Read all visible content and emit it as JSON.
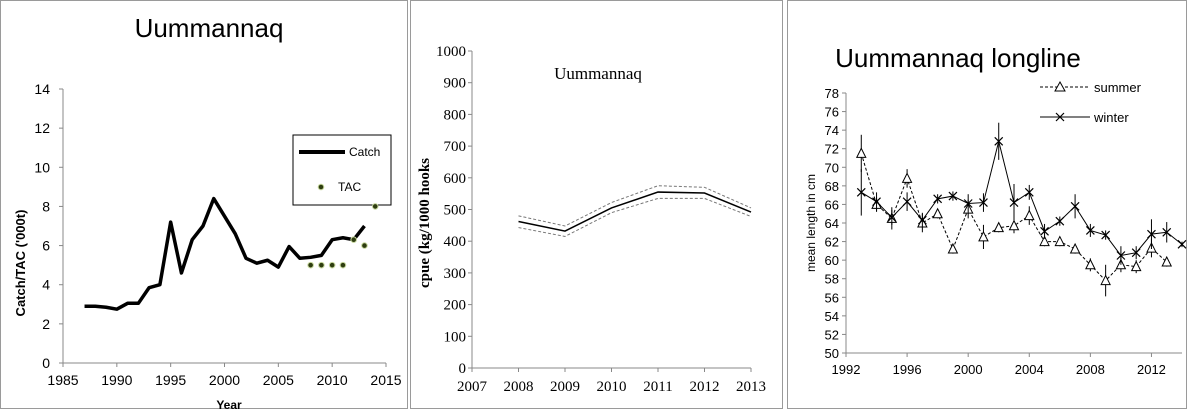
{
  "chart_data": [
    {
      "type": "line",
      "title": "Uummannaq",
      "xlabel": "Year",
      "ylabel": "Catch/TAC ('000t)",
      "xlim": [
        1985,
        2015
      ],
      "ylim": [
        0,
        14
      ],
      "xticks": [
        1985,
        1990,
        1995,
        2000,
        2005,
        2010,
        2015
      ],
      "yticks": [
        0,
        2,
        4,
        6,
        8,
        10,
        12,
        14
      ],
      "grid": false,
      "legend_position": "top-right",
      "series": [
        {
          "name": "Catch",
          "style": "solid-line",
          "color": "#000000",
          "x": [
            1987,
            1988,
            1989,
            1990,
            1991,
            1992,
            1993,
            1994,
            1995,
            1996,
            1997,
            1998,
            1999,
            2000,
            2001,
            2002,
            2003,
            2004,
            2005,
            2006,
            2007,
            2008,
            2009,
            2010,
            2011,
            2012,
            2013
          ],
          "y": [
            2.9,
            2.9,
            2.85,
            2.75,
            3.05,
            3.05,
            3.85,
            4.0,
            7.2,
            4.6,
            6.3,
            7.0,
            8.4,
            7.5,
            6.6,
            5.35,
            5.1,
            5.25,
            4.9,
            5.95,
            5.35,
            5.4,
            5.5,
            6.3,
            6.4,
            6.3,
            7.0
          ]
        },
        {
          "name": "TAC",
          "style": "markers",
          "color": "#2e3d10",
          "x": [
            2008,
            2009,
            2010,
            2011,
            2012,
            2013,
            2014
          ],
          "y": [
            5.0,
            5.0,
            5.0,
            5.0,
            6.3,
            6.0,
            8.0
          ]
        }
      ]
    },
    {
      "type": "line",
      "title": "Uummannaq",
      "ylabel": "cpue (kg/1000 hooks",
      "xlim": [
        2007,
        2013
      ],
      "ylim": [
        0,
        1000
      ],
      "xticks": [
        2007,
        2008,
        2009,
        2010,
        2011,
        2012,
        2013
      ],
      "yticks": [
        0,
        100,
        200,
        300,
        400,
        500,
        600,
        700,
        800,
        900,
        1000
      ],
      "grid": false,
      "series": [
        {
          "role": "estimate",
          "style": "solid",
          "color": "#000000",
          "x": [
            2008,
            2009,
            2010,
            2011,
            2012,
            2013
          ],
          "y": [
            462,
            432,
            505,
            555,
            552,
            492
          ]
        },
        {
          "role": "upper",
          "style": "dashed",
          "color": "#777777",
          "x": [
            2008,
            2009,
            2010,
            2011,
            2012,
            2013
          ],
          "y": [
            480,
            448,
            522,
            575,
            570,
            505
          ]
        },
        {
          "role": "lower",
          "style": "dashed",
          "color": "#777777",
          "x": [
            2008,
            2009,
            2010,
            2011,
            2012,
            2013
          ],
          "y": [
            443,
            415,
            490,
            535,
            535,
            478
          ]
        }
      ]
    },
    {
      "type": "line",
      "title": "Uummannaq longline",
      "ylabel": "mean length in cm",
      "xlim": [
        1992,
        2014
      ],
      "ylim": [
        50,
        78
      ],
      "xticks": [
        1992,
        1996,
        2000,
        2004,
        2008,
        2012
      ],
      "yticks": [
        50,
        52,
        54,
        56,
        58,
        60,
        62,
        64,
        66,
        68,
        70,
        72,
        74,
        76,
        78
      ],
      "grid": false,
      "legend_position": "top-right",
      "series": [
        {
          "name": "summer",
          "style": "dashed",
          "marker": "triangle",
          "color": "#000000",
          "x": [
            1993,
            1994,
            1995,
            1996,
            1997,
            1998,
            1999,
            2000,
            2001,
            2002,
            2003,
            2004,
            2005,
            2006,
            2007,
            2008,
            2009,
            2010,
            2011,
            2012,
            2013
          ],
          "y": [
            71.5,
            66.0,
            64.5,
            68.8,
            64.0,
            65.0,
            61.2,
            65.5,
            62.5,
            63.5,
            63.7,
            64.8,
            62.0,
            62.0,
            61.2,
            59.5,
            57.8,
            59.5,
            59.3,
            61.3,
            59.8
          ],
          "err": [
            2.0,
            0.8,
            1.2,
            1.0,
            1.0,
            0.5,
            0.5,
            1.0,
            1.3,
            0.5,
            0.8,
            1.0,
            0.5,
            0.5,
            0.5,
            0.7,
            1.7,
            0.8,
            0.7,
            1.0,
            0.5
          ]
        },
        {
          "name": "winter",
          "style": "solid",
          "marker": "x",
          "color": "#000000",
          "x": [
            1993,
            1994,
            1995,
            1996,
            1997,
            1998,
            1999,
            2000,
            2001,
            2002,
            2003,
            2004,
            2005,
            2006,
            2007,
            2008,
            2009,
            2010,
            2011,
            2012,
            2013,
            2014
          ],
          "y": [
            67.3,
            66.3,
            64.6,
            66.3,
            64.3,
            66.6,
            66.9,
            66.1,
            66.2,
            72.8,
            66.2,
            67.3,
            63.1,
            64.2,
            65.8,
            63.2,
            62.7,
            60.5,
            60.8,
            62.8,
            63.0,
            61.7
          ],
          "err": [
            2.5,
            1.0,
            0.8,
            1.0,
            0.8,
            0.5,
            0.5,
            1.0,
            1.0,
            2.0,
            2.0,
            0.8,
            0.8,
            0.5,
            1.3,
            0.7,
            0.5,
            1.0,
            0.7,
            1.6,
            1.1,
            0.3
          ]
        }
      ]
    }
  ]
}
